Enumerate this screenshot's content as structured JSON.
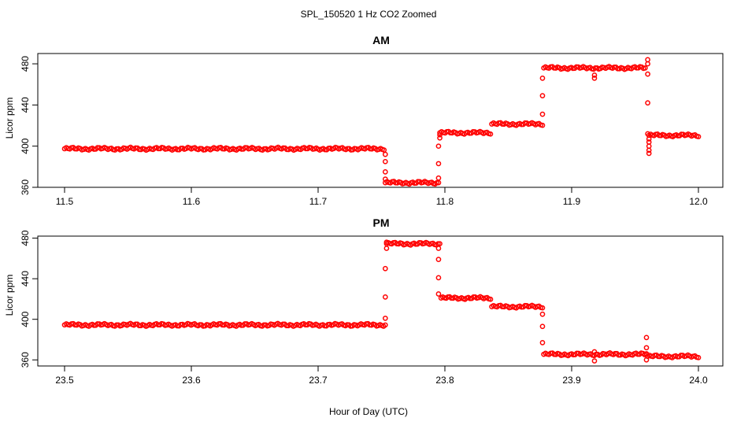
{
  "chart_data": {
    "title": "SPL_150520  1 Hz CO2 Zoomed",
    "xlabel": "Hour of Day (UTC)",
    "type": "scatter",
    "marker_color": "#ff0000",
    "panels": [
      {
        "title": "AM",
        "ylabel": "Licor ppm",
        "xlim": [
          11.5,
          12.0
        ],
        "ylim": [
          360,
          490
        ],
        "xticks": [
          11.5,
          11.6,
          11.7,
          11.8,
          11.9,
          12.0
        ],
        "xtick_labels": [
          "11.5",
          "11.6",
          "11.7",
          "11.8",
          "11.9",
          "12.0"
        ],
        "yticks": [
          360,
          400,
          440,
          480
        ],
        "ytick_labels": [
          "360",
          "400",
          "440",
          "480"
        ],
        "segments": [
          {
            "x0": 11.5,
            "x1": 11.752,
            "y": 397.5
          },
          {
            "x0": 11.753,
            "x1": 11.795,
            "y": 364.5
          },
          {
            "x0": 11.796,
            "x1": 11.836,
            "y": 413
          },
          {
            "x0": 11.837,
            "x1": 11.877,
            "y": 421.5
          },
          {
            "x0": 11.878,
            "x1": 11.958,
            "y": 476
          },
          {
            "x0": 11.961,
            "x1": 12.0,
            "y": 410.5
          }
        ],
        "transitions": [
          {
            "x": 11.753,
            "values": [
              392,
              385,
              375,
              368
            ]
          },
          {
            "x": 11.795,
            "values": [
              369,
              383,
              400
            ]
          },
          {
            "x": 11.796,
            "values": [
              408,
              411
            ]
          },
          {
            "x": 11.877,
            "values": [
              431,
              449,
              466
            ]
          },
          {
            "x": 11.918,
            "values": [
              466,
              469
            ]
          },
          {
            "x": 11.96,
            "values": [
              484,
              480,
              470,
              442,
              412
            ]
          },
          {
            "x": 11.961,
            "values": [
              393,
              396,
              400,
              404,
              407
            ]
          }
        ]
      },
      {
        "title": "PM",
        "ylabel": "Licor ppm",
        "xlim": [
          23.5,
          24.0
        ],
        "ylim": [
          354,
          482
        ],
        "xticks": [
          23.5,
          23.6,
          23.7,
          23.8,
          23.9,
          24.0
        ],
        "xtick_labels": [
          "23.5",
          "23.6",
          "23.7",
          "23.8",
          "23.9",
          "24.0"
        ],
        "yticks": [
          360,
          400,
          440,
          480
        ],
        "ytick_labels": [
          "360",
          "400",
          "440",
          "480"
        ],
        "segments": [
          {
            "x0": 23.5,
            "x1": 23.753,
            "y": 394.5
          },
          {
            "x0": 23.754,
            "x1": 23.796,
            "y": 474.5
          },
          {
            "x0": 23.797,
            "x1": 23.836,
            "y": 421
          },
          {
            "x0": 23.837,
            "x1": 23.877,
            "y": 412.5
          },
          {
            "x0": 23.878,
            "x1": 23.959,
            "y": 365.5
          },
          {
            "x0": 23.96,
            "x1": 24.0,
            "y": 363.5
          }
        ],
        "transitions": [
          {
            "x": 23.753,
            "values": [
              401,
              422,
              450
            ]
          },
          {
            "x": 23.754,
            "values": [
              470,
              476
            ]
          },
          {
            "x": 23.795,
            "values": [
              470,
              459,
              441,
              425
            ]
          },
          {
            "x": 23.877,
            "values": [
              405,
              393,
              377
            ]
          },
          {
            "x": 23.918,
            "values": [
              359,
              368
            ]
          },
          {
            "x": 23.959,
            "values": [
              360,
              366,
              372,
              382
            ]
          }
        ]
      }
    ]
  }
}
